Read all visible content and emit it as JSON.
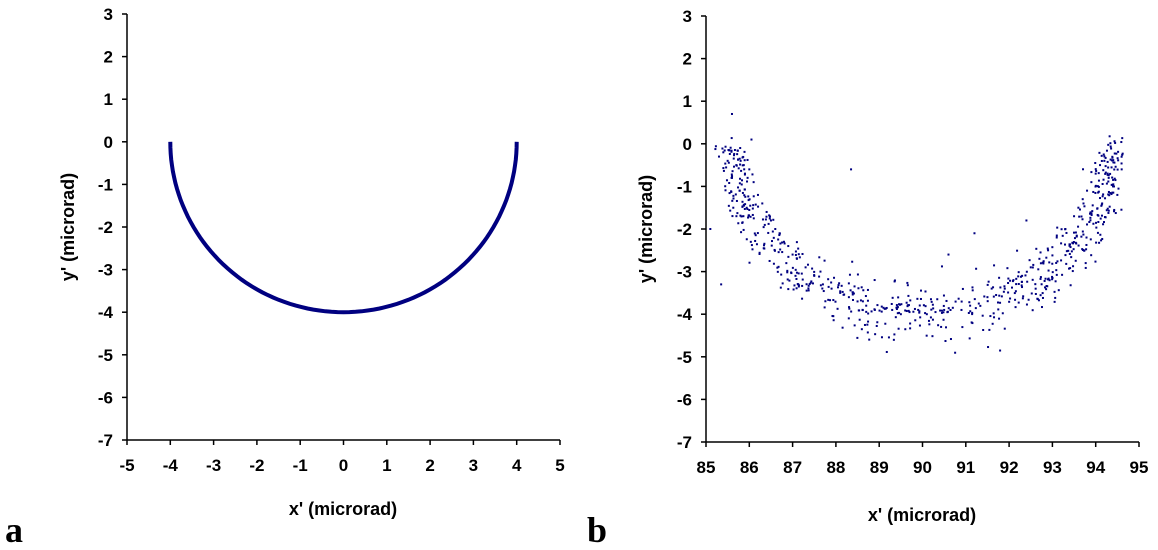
{
  "chart_data": [
    {
      "panel_label": "a",
      "type": "line",
      "xlabel": "x' (microrad)",
      "ylabel": "y' (microrad)",
      "xlim": [
        -5,
        5
      ],
      "ylim": [
        -7,
        3
      ],
      "xticks": [
        -5,
        -4,
        -3,
        -2,
        -1,
        0,
        1,
        2,
        3,
        4,
        5
      ],
      "yticks": [
        3,
        2,
        1,
        0,
        -1,
        -2,
        -3,
        -4,
        -5,
        -6,
        -7
      ],
      "series": [
        {
          "description": "lower semicircle of radius 4 centered at origin",
          "x": [
            -4,
            -3.94,
            -3.76,
            -3.46,
            -3.06,
            -2.57,
            -2.0,
            -1.37,
            -0.69,
            0,
            0.69,
            1.37,
            2.0,
            2.57,
            3.06,
            3.46,
            3.76,
            3.94,
            4
          ],
          "y": [
            0,
            -0.69,
            -1.37,
            -2.0,
            -2.57,
            -3.06,
            -3.46,
            -3.76,
            -3.94,
            -4,
            -3.94,
            -3.76,
            -3.46,
            -3.06,
            -2.57,
            -2.0,
            -1.37,
            -0.69,
            0
          ]
        }
      ],
      "color": "#000080",
      "grid": false,
      "legend": "none"
    },
    {
      "panel_label": "b",
      "type": "scatter",
      "xlabel": "x' (microrad)",
      "ylabel": "y' (microrad)",
      "xlim": [
        85,
        95
      ],
      "ylim": [
        -7,
        3
      ],
      "xticks": [
        85,
        86,
        87,
        88,
        89,
        90,
        91,
        92,
        93,
        94,
        95
      ],
      "yticks": [
        3,
        2,
        1,
        0,
        -1,
        -2,
        -3,
        -4,
        -5,
        -6,
        -7
      ],
      "series": [
        {
          "description": "noisy points scattered around a lower semicircle of radius 4 centered at (90, 0)",
          "x": [
            85.3,
            85.4,
            85.5,
            85.6,
            85.7,
            85.8,
            85.9,
            86.0,
            86.1,
            86.2,
            86.3,
            86.4,
            86.5,
            86.6,
            86.7,
            86.8,
            86.9,
            87.0,
            87.1,
            87.3,
            87.5,
            87.7,
            87.9,
            88.1,
            88.3,
            88.5,
            88.7,
            88.9,
            89.1,
            89.3,
            89.5,
            89.7,
            89.9,
            90.1,
            90.3,
            90.5,
            90.7,
            90.9,
            91.1,
            91.3,
            91.5,
            91.7,
            91.9,
            92.1,
            92.3,
            92.5,
            92.7,
            92.9,
            93.1,
            93.3,
            93.5,
            93.6,
            93.7,
            93.8,
            93.9,
            94.0,
            94.1,
            94.2,
            94.3,
            94.4,
            94.5,
            94.6,
            85.1,
            85.35,
            88.35,
            90.6,
            91.2,
            92.4,
            85.6,
            86.05
          ],
          "y": [
            -0.3,
            -0.2,
            -0.4,
            -0.8,
            -0.5,
            -0.4,
            -0.7,
            -0.6,
            -0.9,
            -1.2,
            -1.4,
            -1.6,
            -1.8,
            -2.0,
            -2.1,
            -2.3,
            -2.4,
            -2.6,
            -2.7,
            -2.9,
            -3.1,
            -3.3,
            -3.4,
            -3.5,
            -3.6,
            -3.7,
            -3.8,
            -3.9,
            -3.85,
            -3.9,
            -4.0,
            -3.95,
            -3.9,
            -4.0,
            -3.95,
            -3.9,
            -3.85,
            -3.9,
            -3.8,
            -3.75,
            -3.6,
            -3.55,
            -3.4,
            -3.2,
            -3.1,
            -2.9,
            -2.7,
            -2.5,
            -2.2,
            -2.0,
            -1.7,
            -1.5,
            -1.3,
            -1.1,
            -0.9,
            -0.7,
            -0.5,
            -0.4,
            -0.8,
            -1.0,
            -1.2,
            -0.6,
            -2.0,
            -3.3,
            -0.6,
            -2.6,
            -2.1,
            -1.8,
            0.7,
            0.1
          ],
          "noise_amplitude": 0.35,
          "point_count": 700
        }
      ],
      "color": "#000080",
      "grid": false,
      "legend": "none"
    }
  ]
}
